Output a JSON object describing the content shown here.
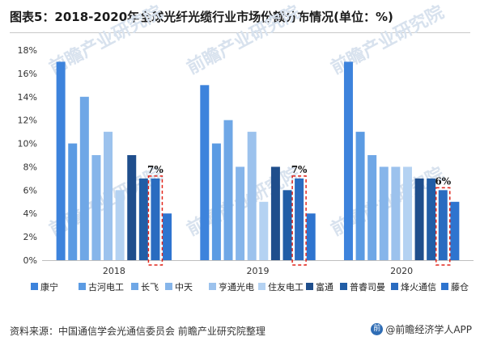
{
  "title": "图表5：2018-2020年全球光纤光缆行业市场份额分布情况(单位：%)",
  "source": "资料来源：中国通信学会光通信委员会 前瞻产业研究院整理",
  "brand": "@前瞻经济学人APP",
  "watermark": "前瞻产业研究院",
  "chart_data": {
    "type": "bar",
    "categories": [
      "2018",
      "2019",
      "2020"
    ],
    "yticks": [
      "0%",
      "2%",
      "4%",
      "6%",
      "8%",
      "10%",
      "12%",
      "14%",
      "16%",
      "18%"
    ],
    "ylim": [
      0,
      18
    ],
    "grid": false,
    "legend_position": "bottom",
    "series": [
      {
        "name": "康宁",
        "color": "#3d83dc",
        "values": [
          17,
          15,
          17
        ]
      },
      {
        "name": "古河电工",
        "color": "#5b9be3",
        "values": [
          10,
          10,
          11
        ]
      },
      {
        "name": "长飞",
        "color": "#6fa7e6",
        "values": [
          14,
          12,
          9
        ]
      },
      {
        "name": "中天",
        "color": "#86b5ea",
        "values": [
          9,
          8,
          8
        ]
      },
      {
        "name": "亨通光电",
        "color": "#9cc2ed",
        "values": [
          11,
          11,
          8
        ]
      },
      {
        "name": "住友电工",
        "color": "#b4d2f2",
        "values": [
          6,
          5,
          8
        ]
      },
      {
        "name": "富通",
        "color": "#1f4e8c",
        "values": [
          9,
          8,
          7
        ]
      },
      {
        "name": "普睿司曼",
        "color": "#215da6",
        "values": [
          7,
          6,
          7
        ]
      },
      {
        "name": "烽火通信",
        "color": "#2a6cc0",
        "values": [
          7,
          7,
          6
        ]
      },
      {
        "name": "藤仓",
        "color": "#2e74cf",
        "values": [
          4,
          4,
          5
        ]
      }
    ],
    "annotations": [
      {
        "category": "2018",
        "series": "烽火通信",
        "label": "7%"
      },
      {
        "category": "2019",
        "series": "烽火通信",
        "label": "7%"
      },
      {
        "category": "2020",
        "series": "烽火通信",
        "label": "6%"
      }
    ]
  }
}
